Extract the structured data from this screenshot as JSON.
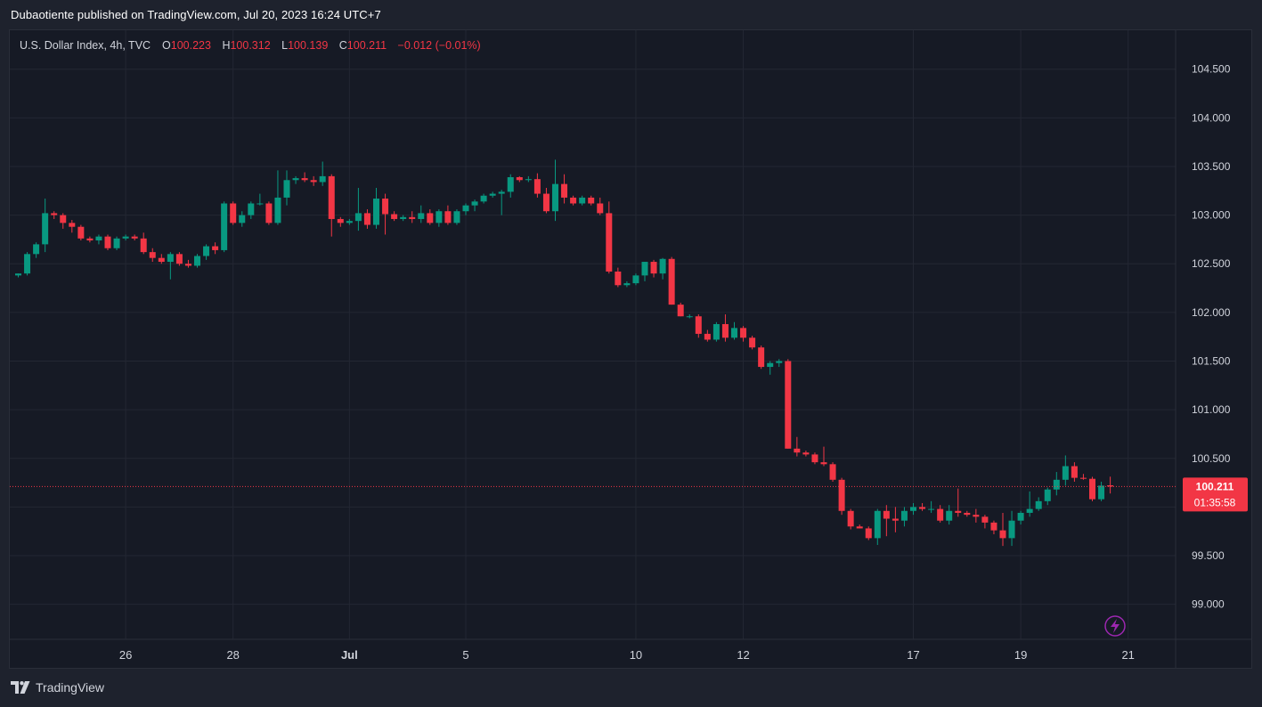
{
  "header": {
    "published": "Dubaotiente published on TradingView.com, Jul 20, 2023 16:24 UTC+7"
  },
  "legend": {
    "symbol": "U.S. Dollar Index, 4h, TVC",
    "o_label": "O",
    "o": "100.223",
    "h_label": "H",
    "h": "100.312",
    "l_label": "L",
    "l": "100.139",
    "c_label": "C",
    "c": "100.211",
    "change": "−0.012 (−0.01%)"
  },
  "footer": {
    "brand": "TradingView"
  },
  "colors": {
    "up": "#089981",
    "down": "#f23645",
    "grid": "#232733",
    "background": "#161a25",
    "text": "#d1d4dc",
    "flash_icon": "#9c27b0"
  },
  "icons": {
    "flash": "lightning-bolt-icon"
  },
  "chart_data": {
    "type": "candlestick",
    "symbol": "U.S. Dollar Index",
    "interval": "4h",
    "exchange": "TVC",
    "y_ticks": [
      "104.500",
      "104.000",
      "103.500",
      "103.000",
      "102.500",
      "102.000",
      "101.500",
      "101.000",
      "100.500",
      "100.000",
      "99.500",
      "99.000"
    ],
    "y_range": [
      98.64,
      104.9
    ],
    "x_ticks": [
      {
        "label": "26",
        "bar": 12
      },
      {
        "label": "28",
        "bar": 24
      },
      {
        "label": "Jul",
        "bar": 37
      },
      {
        "label": "5",
        "bar": 50
      },
      {
        "label": "10",
        "bar": 69
      },
      {
        "label": "12",
        "bar": 81
      },
      {
        "label": "17",
        "bar": 100
      },
      {
        "label": "19",
        "bar": 112
      },
      {
        "label": "21",
        "bar": 124
      }
    ],
    "last_price": "100.211",
    "countdown": "01:35:58",
    "last_price_value": 100.211,
    "grid": true,
    "candles": [
      [
        102.38,
        102.4,
        102.36,
        102.4
      ],
      [
        102.4,
        102.62,
        102.38,
        102.6
      ],
      [
        102.6,
        102.72,
        102.56,
        102.7
      ],
      [
        102.7,
        103.17,
        102.62,
        103.02
      ],
      [
        103.02,
        103.04,
        102.96,
        103.0
      ],
      [
        103.0,
        103.02,
        102.86,
        102.92
      ],
      [
        102.92,
        102.95,
        102.82,
        102.88
      ],
      [
        102.88,
        102.9,
        102.74,
        102.76
      ],
      [
        102.76,
        102.78,
        102.72,
        102.74
      ],
      [
        102.74,
        102.8,
        102.7,
        102.78
      ],
      [
        102.78,
        102.8,
        102.64,
        102.66
      ],
      [
        102.66,
        102.78,
        102.64,
        102.76
      ],
      [
        102.76,
        102.8,
        102.74,
        102.78
      ],
      [
        102.78,
        102.8,
        102.74,
        102.76
      ],
      [
        102.76,
        102.82,
        102.6,
        102.62
      ],
      [
        102.62,
        102.66,
        102.52,
        102.56
      ],
      [
        102.56,
        102.6,
        102.5,
        102.52
      ],
      [
        102.52,
        102.62,
        102.34,
        102.6
      ],
      [
        102.6,
        102.62,
        102.48,
        102.5
      ],
      [
        102.5,
        102.54,
        102.46,
        102.48
      ],
      [
        102.48,
        102.6,
        102.46,
        102.58
      ],
      [
        102.58,
        102.7,
        102.54,
        102.68
      ],
      [
        102.68,
        102.72,
        102.6,
        102.64
      ],
      [
        102.64,
        103.14,
        102.62,
        103.12
      ],
      [
        103.12,
        103.14,
        102.9,
        102.92
      ],
      [
        102.92,
        103.04,
        102.88,
        103.0
      ],
      [
        103.0,
        103.14,
        102.96,
        103.12
      ],
      [
        103.12,
        103.22,
        103.1,
        103.12
      ],
      [
        103.12,
        103.14,
        102.9,
        102.92
      ],
      [
        102.92,
        103.46,
        102.9,
        103.18
      ],
      [
        103.18,
        103.46,
        103.1,
        103.36
      ],
      [
        103.36,
        103.4,
        103.32,
        103.38
      ],
      [
        103.38,
        103.44,
        103.34,
        103.36
      ],
      [
        103.36,
        103.4,
        103.3,
        103.34
      ],
      [
        103.34,
        103.55,
        103.3,
        103.4
      ],
      [
        103.4,
        103.42,
        102.78,
        102.96
      ],
      [
        102.96,
        102.98,
        102.88,
        102.92
      ],
      [
        102.92,
        102.96,
        102.9,
        102.94
      ],
      [
        102.94,
        103.28,
        102.84,
        103.02
      ],
      [
        103.02,
        103.06,
        102.86,
        102.9
      ],
      [
        102.9,
        103.28,
        102.86,
        103.17
      ],
      [
        103.17,
        103.22,
        102.8,
        103.01
      ],
      [
        103.01,
        103.04,
        102.94,
        102.96
      ],
      [
        102.96,
        103.0,
        102.94,
        102.98
      ],
      [
        102.98,
        103.04,
        102.92,
        102.96
      ],
      [
        102.96,
        103.1,
        102.92,
        103.02
      ],
      [
        103.02,
        103.06,
        102.9,
        102.92
      ],
      [
        102.92,
        103.06,
        102.88,
        103.04
      ],
      [
        103.04,
        103.1,
        102.9,
        102.92
      ],
      [
        102.92,
        103.06,
        102.9,
        103.04
      ],
      [
        103.04,
        103.12,
        103.0,
        103.1
      ],
      [
        103.1,
        103.16,
        103.04,
        103.14
      ],
      [
        103.14,
        103.22,
        103.12,
        103.2
      ],
      [
        103.2,
        103.24,
        103.18,
        103.22
      ],
      [
        103.22,
        103.26,
        103.0,
        103.24
      ],
      [
        103.24,
        103.42,
        103.18,
        103.39
      ],
      [
        103.39,
        103.4,
        103.34,
        103.36
      ],
      [
        103.36,
        103.4,
        103.34,
        103.37
      ],
      [
        103.37,
        103.43,
        103.18,
        103.22
      ],
      [
        103.22,
        103.28,
        103.02,
        103.04
      ],
      [
        103.04,
        103.57,
        102.94,
        103.32
      ],
      [
        103.32,
        103.42,
        103.12,
        103.18
      ],
      [
        103.18,
        103.2,
        103.1,
        103.12
      ],
      [
        103.12,
        103.2,
        103.1,
        103.18
      ],
      [
        103.18,
        103.2,
        103.1,
        103.12
      ],
      [
        103.12,
        103.18,
        103.0,
        103.02
      ],
      [
        103.02,
        103.14,
        102.4,
        102.42
      ],
      [
        102.42,
        102.46,
        102.26,
        102.28
      ],
      [
        102.28,
        102.32,
        102.26,
        102.3
      ],
      [
        102.3,
        102.4,
        102.28,
        102.38
      ],
      [
        102.38,
        102.52,
        102.32,
        102.52
      ],
      [
        102.52,
        102.54,
        102.36,
        102.4
      ],
      [
        102.4,
        102.56,
        102.34,
        102.55
      ],
      [
        102.55,
        102.57,
        102.08,
        102.08
      ],
      [
        102.08,
        102.1,
        101.96,
        101.96
      ],
      [
        101.96,
        101.98,
        101.94,
        101.96
      ],
      [
        101.96,
        101.98,
        101.74,
        101.78
      ],
      [
        101.78,
        101.82,
        101.7,
        101.72
      ],
      [
        101.72,
        101.9,
        101.7,
        101.88
      ],
      [
        101.88,
        101.98,
        101.7,
        101.74
      ],
      [
        101.74,
        101.9,
        101.72,
        101.84
      ],
      [
        101.84,
        101.86,
        101.7,
        101.74
      ],
      [
        101.74,
        101.76,
        101.62,
        101.64
      ],
      [
        101.64,
        101.66,
        101.42,
        101.44
      ],
      [
        101.44,
        101.5,
        101.36,
        101.48
      ],
      [
        101.48,
        101.52,
        101.44,
        101.5
      ],
      [
        101.5,
        101.52,
        100.6,
        100.6
      ],
      [
        100.6,
        100.72,
        100.52,
        100.56
      ],
      [
        100.56,
        100.58,
        100.52,
        100.54
      ],
      [
        100.54,
        100.56,
        100.44,
        100.46
      ],
      [
        100.46,
        100.62,
        100.42,
        100.44
      ],
      [
        100.44,
        100.46,
        100.26,
        100.28
      ],
      [
        100.28,
        100.3,
        99.92,
        99.96
      ],
      [
        99.96,
        99.98,
        99.77,
        99.8
      ],
      [
        99.8,
        99.82,
        99.78,
        99.78
      ],
      [
        99.78,
        99.8,
        99.66,
        99.68
      ],
      [
        99.68,
        99.98,
        99.61,
        99.96
      ],
      [
        99.96,
        100.02,
        99.7,
        99.88
      ],
      [
        99.88,
        100.0,
        99.74,
        99.86
      ],
      [
        99.86,
        100.0,
        99.8,
        99.96
      ],
      [
        99.96,
        100.04,
        99.92,
        100.0
      ],
      [
        100.0,
        100.04,
        99.96,
        99.98
      ],
      [
        99.98,
        100.06,
        99.94,
        99.98
      ],
      [
        99.98,
        100.02,
        99.84,
        99.86
      ],
      [
        99.86,
        100.02,
        99.82,
        99.96
      ],
      [
        99.96,
        100.19,
        99.9,
        99.94
      ],
      [
        99.94,
        99.96,
        99.9,
        99.92
      ],
      [
        99.92,
        99.98,
        99.84,
        99.9
      ],
      [
        99.9,
        99.92,
        99.78,
        99.84
      ],
      [
        99.84,
        99.86,
        99.72,
        99.76
      ],
      [
        99.76,
        99.94,
        99.6,
        99.68
      ],
      [
        99.68,
        99.96,
        99.6,
        99.86
      ],
      [
        99.86,
        99.96,
        99.82,
        99.94
      ],
      [
        99.94,
        100.16,
        99.9,
        99.98
      ],
      [
        99.98,
        100.1,
        99.96,
        100.06
      ],
      [
        100.06,
        100.2,
        100.02,
        100.18
      ],
      [
        100.18,
        100.36,
        100.12,
        100.28
      ],
      [
        100.28,
        100.53,
        100.22,
        100.42
      ],
      [
        100.42,
        100.46,
        100.26,
        100.3
      ],
      [
        100.3,
        100.34,
        100.28,
        100.29
      ],
      [
        100.29,
        100.31,
        100.06,
        100.08
      ],
      [
        100.08,
        100.26,
        100.06,
        100.22
      ],
      [
        100.223,
        100.312,
        100.139,
        100.211
      ]
    ]
  }
}
